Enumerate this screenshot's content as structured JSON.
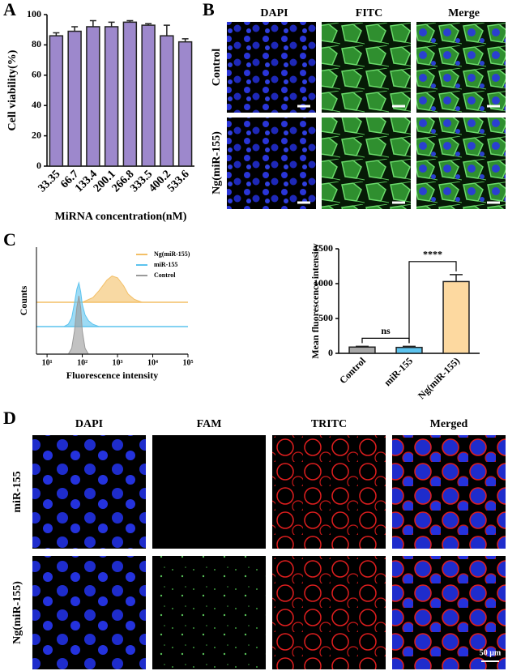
{
  "panel_labels": [
    "A",
    "B",
    "C",
    "D"
  ],
  "chart_data": [
    {
      "type": "bar",
      "ylabel": "Cell viability(%)",
      "xlabel": "MiRNA concentration(nM)",
      "categories": [
        "33.35",
        "66.7",
        "133.4",
        "200.1",
        "266.8",
        "333.5",
        "400.2",
        "533.6"
      ],
      "values": [
        86,
        89,
        92,
        92,
        95,
        93,
        86,
        82
      ],
      "errors": [
        2,
        3,
        4,
        3,
        1,
        1,
        7,
        2
      ],
      "color": "#9d88cc",
      "ylim": [
        0,
        100
      ],
      "yticks": [
        0,
        20,
        40,
        60,
        80,
        100
      ]
    },
    {
      "type": "area",
      "xlabel": "Fluorescence intensity",
      "ylabel": "Counts",
      "xscale": "log",
      "xlim": [
        5,
        100000
      ],
      "xticks": [
        {
          "value": 10,
          "label": "10¹"
        },
        {
          "value": 100,
          "label": "10²"
        },
        {
          "value": 1000,
          "label": "10³"
        },
        {
          "value": 10000,
          "label": "10⁴"
        },
        {
          "value": 100000,
          "label": "10⁵"
        }
      ],
      "legend": "upper right",
      "series": [
        {
          "name": "Ng(miR-155)",
          "color": "#f3bf66",
          "x": [
            100,
            200,
            300,
            500,
            700,
            1000,
            1500,
            2000,
            3000,
            5000
          ],
          "values": [
            0,
            8,
            20,
            38,
            45,
            42,
            28,
            14,
            5,
            0
          ]
        },
        {
          "name": "miR-155",
          "color": "#5cc3ee",
          "x": [
            30,
            40,
            50,
            60,
            70,
            80,
            90,
            100,
            120,
            150,
            200,
            300
          ],
          "values": [
            0,
            4,
            15,
            40,
            64,
            75,
            60,
            38,
            20,
            10,
            4,
            0
          ]
        },
        {
          "name": "Control",
          "color": "#9a9a9a",
          "x": [
            40,
            50,
            60,
            70,
            80,
            90,
            100,
            120,
            150
          ],
          "values": [
            0,
            10,
            40,
            80,
            100,
            80,
            40,
            10,
            0
          ]
        }
      ]
    },
    {
      "type": "bar",
      "ylabel": "Mean fluorescence intensity",
      "categories": [
        "Control",
        "miR-155",
        "Ng(miR-155)"
      ],
      "values": [
        90,
        85,
        1030
      ],
      "errors": [
        10,
        15,
        100
      ],
      "colors": [
        "#a8a8a8",
        "#5cc3ee",
        "#fdd9a0"
      ],
      "ylim": [
        0,
        1500
      ],
      "yticks": [
        0,
        500,
        1000,
        1500
      ],
      "annotations": [
        "ns",
        "****"
      ]
    }
  ],
  "panel_b": {
    "columns": [
      "DAPI",
      "FITC",
      "Merge"
    ],
    "rows": [
      "Control",
      "Ng(miR-155)"
    ]
  },
  "panel_d": {
    "columns": [
      "DAPI",
      "FAM",
      "TRITC",
      "Merged"
    ],
    "rows": [
      "miR-155",
      "Ng(miR-155)"
    ],
    "scale_bar": "50 μm"
  }
}
